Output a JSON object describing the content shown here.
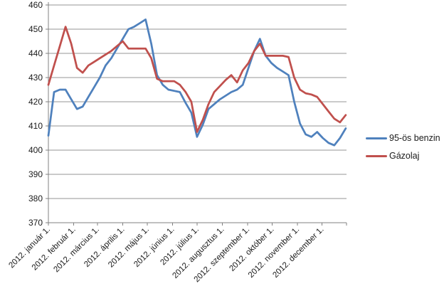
{
  "chart_data": {
    "type": "line",
    "title": "",
    "xlabel": "",
    "ylabel": "",
    "grid": "horizontal",
    "legend_position": "right",
    "sampling_interval_days": 7,
    "y_axis": {
      "min": 370,
      "max": 460,
      "step": 10,
      "tick_labels": [
        "460",
        "450",
        "440",
        "430",
        "420",
        "410",
        "400",
        "390",
        "380",
        "370"
      ]
    },
    "x_axis": {
      "tick_labels": [
        "2012. január 1.",
        "2012. február 1.",
        "2012. március 1.",
        "2012. április 1.",
        "2012. május 1.",
        "2012. június 1.",
        "2012. július 1.",
        "2012. augusztus 1.",
        "2012. szeptember 1.",
        "2012. október 1.",
        "2012. november 1.",
        "2012. december 1."
      ],
      "month_start_days": [
        0,
        31,
        60,
        91,
        121,
        152,
        182,
        213,
        244,
        274,
        305,
        335
      ],
      "axis_end_day": 365,
      "label_rotation_deg": -45
    },
    "series": [
      {
        "name": "95-ös benzin",
        "color": "#4F81BD",
        "values": [
          406,
          424,
          425,
          425,
          421,
          417,
          418,
          422,
          426,
          430,
          435,
          438,
          442,
          446,
          450,
          451,
          452.5,
          454,
          444,
          431,
          427,
          425,
          424.5,
          424,
          419.5,
          415.5,
          405.5,
          410.5,
          417,
          419,
          421,
          422.5,
          424,
          425,
          427,
          434,
          441,
          446,
          439,
          436,
          434,
          432.5,
          431,
          420,
          411,
          406.5,
          405.5,
          407.5,
          405,
          403,
          402,
          405,
          409
        ]
      },
      {
        "name": "Gázolaj",
        "color": "#C0504D",
        "values": [
          427,
          435,
          443,
          451,
          444,
          434,
          432,
          435,
          436.5,
          438,
          439.5,
          441,
          443,
          445,
          442,
          442,
          442,
          442,
          438,
          429.5,
          428.5,
          428.5,
          428.5,
          427,
          424,
          420,
          407.5,
          412.5,
          419,
          424,
          426.5,
          429,
          431,
          428,
          433,
          436,
          441,
          444,
          439,
          439,
          439,
          439,
          438.5,
          430,
          425,
          423.5,
          423,
          422,
          419,
          416,
          413,
          411.5,
          414.5
        ]
      }
    ],
    "colors": {
      "gridline": "#969696",
      "axis": "#808080",
      "text": "#1a1a1a",
      "background": "#ffffff"
    }
  }
}
